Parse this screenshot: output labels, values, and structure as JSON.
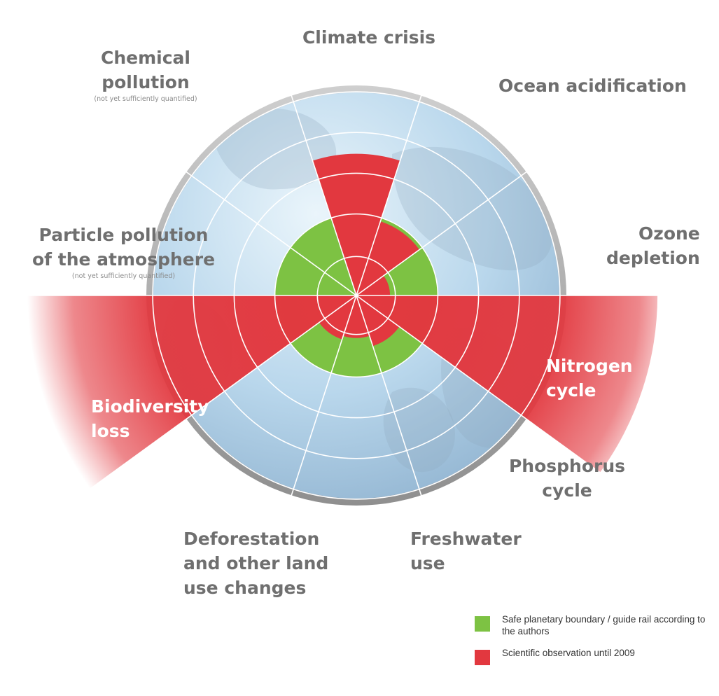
{
  "diagram": {
    "sectors": [
      {
        "name": "Climate crisis",
        "lines": [
          "Climate crisis"
        ],
        "boundary": 0.46,
        "observed": 0.8
      },
      {
        "name": "Ocean acidification",
        "lines": [
          "Ocean acidification"
        ],
        "boundary": 0.46,
        "observed": 0.44
      },
      {
        "name": "Ozone depletion",
        "lines": [
          "Ozone",
          "depletion"
        ],
        "boundary": 0.46,
        "observed": 0.19
      },
      {
        "name": "Nitrogen cycle",
        "lines": [
          "Nitrogen",
          "cycle"
        ],
        "boundary": 0.46,
        "observed": 1.7
      },
      {
        "name": "Phosphorus cycle",
        "lines": [
          "Phosphorus",
          "cycle"
        ],
        "boundary": 0.46,
        "observed": 0.3
      },
      {
        "name": "Freshwater use",
        "lines": [
          "Freshwater",
          "use"
        ],
        "boundary": 0.46,
        "observed": 0.24
      },
      {
        "name": "Deforestation and other land use changes",
        "lines": [
          "Deforestation",
          "and other land",
          "use changes"
        ],
        "boundary": 0.46,
        "observed": 0.26
      },
      {
        "name": "Biodiversity loss",
        "lines": [
          "Biodiversity",
          "loss"
        ],
        "boundary": 0.46,
        "observed": 1.9
      },
      {
        "name": "Particle pollution of the atmosphere",
        "lines": [
          "Particle pollution",
          "of the atmosphere"
        ],
        "note": "(not yet sufficiently quantified)",
        "boundary": 0.46,
        "observed": null
      },
      {
        "name": "Chemical pollution",
        "lines": [
          "Chemical",
          "pollution"
        ],
        "note": "(not yet sufficiently quantified)",
        "boundary": 0.46,
        "observed": null
      }
    ]
  },
  "legend": [
    {
      "label": "Safe planetary boundary / guide rail according to the authors",
      "color": "#7dc243"
    },
    {
      "label": "Scientific observation until 2009",
      "color": "#e2383f"
    }
  ],
  "colors": {
    "safe": "#7dc243",
    "observed": "#e2383f",
    "globe": "#b2d0e6",
    "rim": "#a9a9a9",
    "label": "#6f6f6f"
  }
}
